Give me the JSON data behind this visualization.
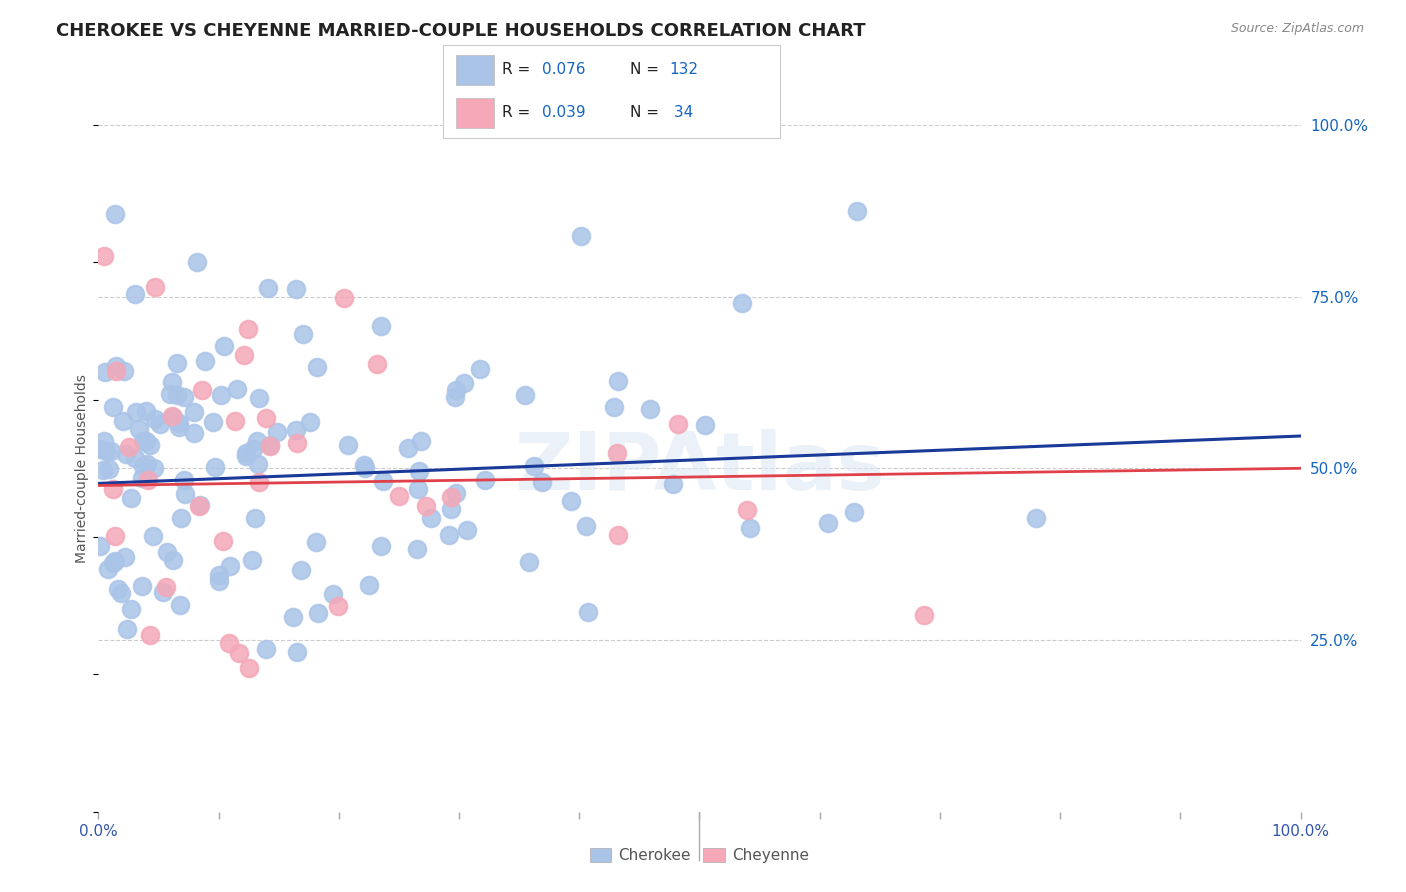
{
  "title": "CHEROKEE VS CHEYENNE MARRIED-COUPLE HOUSEHOLDS CORRELATION CHART",
  "source": "Source: ZipAtlas.com",
  "ylabel": "Married-couple Households",
  "cherokee_R": 0.076,
  "cherokee_N": 132,
  "cheyenne_R": 0.039,
  "cheyenne_N": 34,
  "cherokee_color": "#aac4e8",
  "cheyenne_color": "#f4a8b8",
  "cherokee_line_color": "#1a3a9a",
  "cheyenne_line_color": "#e0404a",
  "watermark": "ZIPAtlas",
  "background_color": "#ffffff",
  "grid_color": "#cccccc",
  "title_fontsize": 13,
  "right_axis_color": "#1565c0",
  "legend_label_color": "#222222",
  "legend_value_color": "#1565c0",
  "source_color": "#888888",
  "ylabel_color": "#555555",
  "bottom_label_color": "#555555"
}
